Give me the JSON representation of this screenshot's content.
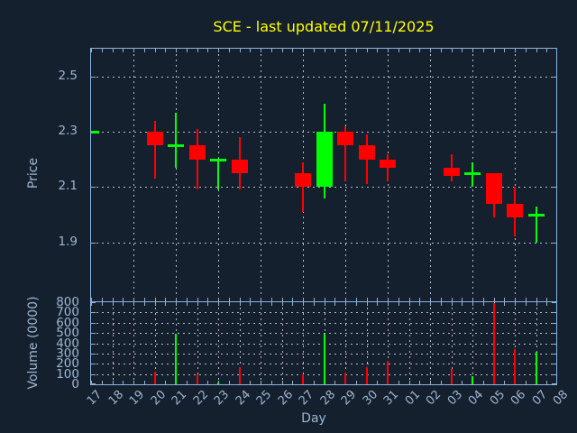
{
  "title": {
    "text": "SCE - last updated 07/11/2025"
  },
  "colors": {
    "background": "#15202e",
    "frame": "#8cb2d8",
    "tick_text": "#9db6d2",
    "title_text": "#ffff00",
    "grid": "#b7bdc5",
    "up": "#00ff00",
    "down": "#ff0000"
  },
  "chart_data": [
    {
      "type": "candlestick",
      "title": "SCE - last updated 07/11/2025",
      "xlabel": "Day",
      "ylabel": "Price",
      "x_categories": [
        "17",
        "18",
        "19",
        "20",
        "21",
        "22",
        "23",
        "24",
        "25",
        "26",
        "27",
        "28",
        "29",
        "30",
        "31",
        "01",
        "02",
        "03",
        "04",
        "05",
        "06",
        "07",
        "08"
      ],
      "ylim": [
        1.69,
        2.6
      ],
      "yticks": [
        1.9,
        2.1,
        2.3,
        2.5
      ],
      "ytick_labels": [
        "1.9",
        "2.1",
        "2.3",
        "2.5"
      ],
      "grid": "dotted",
      "grid_x_days": [
        "19",
        "21",
        "23",
        "25",
        "27",
        "29",
        "31",
        "02",
        "04",
        "06",
        "08"
      ],
      "candles": [
        {
          "day": "17",
          "open": 2.3,
          "high": 2.3,
          "low": 2.3,
          "close": 2.3
        },
        {
          "day": "20",
          "open": 2.3,
          "high": 2.34,
          "low": 2.13,
          "close": 2.25
        },
        {
          "day": "21",
          "open": 2.25,
          "high": 2.37,
          "low": 2.17,
          "close": 2.25
        },
        {
          "day": "22",
          "open": 2.25,
          "high": 2.31,
          "low": 2.09,
          "close": 2.2
        },
        {
          "day": "23",
          "open": 2.2,
          "high": 2.2,
          "low": 2.09,
          "close": 2.2
        },
        {
          "day": "24",
          "open": 2.2,
          "high": 2.28,
          "low": 2.09,
          "close": 2.15
        },
        {
          "day": "27",
          "open": 2.15,
          "high": 2.19,
          "low": 2.01,
          "close": 2.1
        },
        {
          "day": "28",
          "open": 2.1,
          "high": 2.4,
          "low": 2.06,
          "close": 2.3
        },
        {
          "day": "29",
          "open": 2.3,
          "high": 2.32,
          "low": 2.12,
          "close": 2.25
        },
        {
          "day": "30",
          "open": 2.25,
          "high": 2.29,
          "low": 2.11,
          "close": 2.2
        },
        {
          "day": "31",
          "open": 2.2,
          "high": 2.22,
          "low": 2.12,
          "close": 2.17
        },
        {
          "day": "03",
          "open": 2.17,
          "high": 2.22,
          "low": 2.12,
          "close": 2.14
        },
        {
          "day": "04",
          "open": 2.15,
          "high": 2.19,
          "low": 2.1,
          "close": 2.15
        },
        {
          "day": "05",
          "open": 2.15,
          "high": 2.15,
          "low": 1.99,
          "close": 2.04
        },
        {
          "day": "06",
          "open": 2.04,
          "high": 2.1,
          "low": 1.92,
          "close": 1.99
        },
        {
          "day": "07",
          "open": 2.0,
          "high": 2.03,
          "low": 1.9,
          "close": 2.0
        }
      ]
    },
    {
      "type": "bar",
      "ylabel": "Volume (0000)",
      "ylim": [
        0,
        800
      ],
      "yticks": [
        0,
        100,
        200,
        300,
        400,
        500,
        600,
        700,
        800
      ],
      "ytick_labels": [
        "0",
        "100",
        "200",
        "300",
        "400",
        "500",
        "600",
        "700",
        "800"
      ],
      "grid": "dotted",
      "bars": [
        {
          "day": "20",
          "value": 120,
          "direction": "down"
        },
        {
          "day": "21",
          "value": 490,
          "direction": "up"
        },
        {
          "day": "22",
          "value": 95,
          "direction": "down"
        },
        {
          "day": "23",
          "value": 20,
          "direction": "up"
        },
        {
          "day": "24",
          "value": 170,
          "direction": "down"
        },
        {
          "day": "27",
          "value": 100,
          "direction": "down"
        },
        {
          "day": "28",
          "value": 490,
          "direction": "up"
        },
        {
          "day": "29",
          "value": 110,
          "direction": "down"
        },
        {
          "day": "30",
          "value": 170,
          "direction": "down"
        },
        {
          "day": "31",
          "value": 230,
          "direction": "down"
        },
        {
          "day": "03",
          "value": 150,
          "direction": "down"
        },
        {
          "day": "04",
          "value": 80,
          "direction": "up"
        },
        {
          "day": "05",
          "value": 790,
          "direction": "down"
        },
        {
          "day": "06",
          "value": 340,
          "direction": "down"
        },
        {
          "day": "07",
          "value": 320,
          "direction": "up"
        }
      ]
    }
  ]
}
